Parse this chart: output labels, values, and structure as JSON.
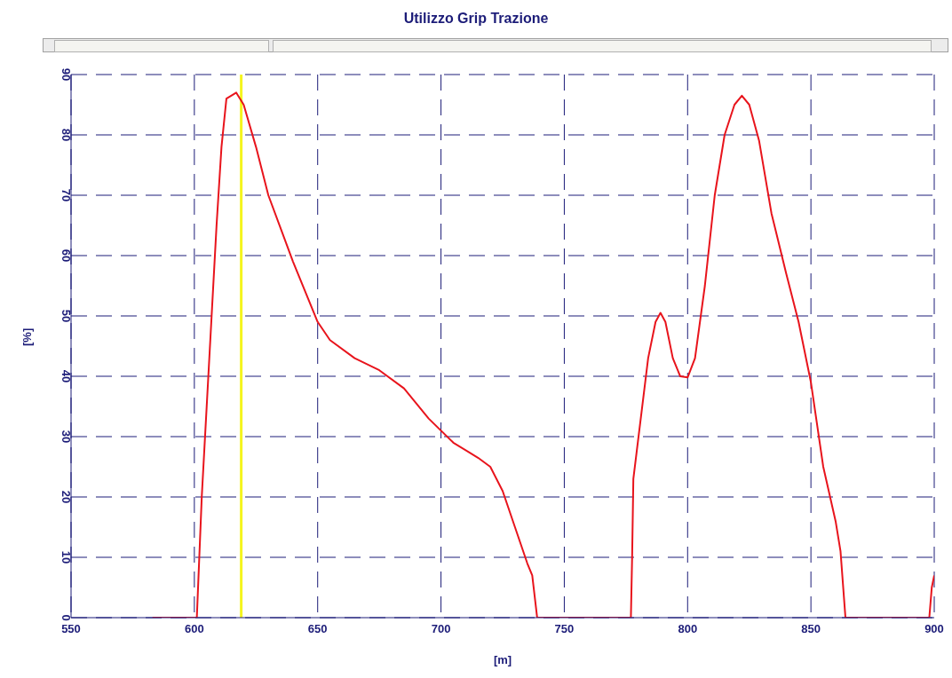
{
  "chart_data": {
    "type": "line",
    "title": "Utilizzo Grip Trazione",
    "xlabel": "[m]",
    "ylabel": "[%]",
    "x": [
      583,
      601,
      602,
      603,
      605,
      607,
      609,
      611,
      613,
      617,
      620,
      625,
      630,
      640,
      650,
      655,
      665,
      675,
      685,
      695,
      705,
      715,
      720,
      725,
      730,
      735,
      737,
      739,
      741,
      777,
      777.5,
      778,
      781,
      784,
      787,
      789,
      791,
      794,
      797,
      800,
      803,
      807,
      811,
      815,
      819,
      822,
      825,
      829,
      834,
      840,
      845,
      850,
      855,
      860,
      862,
      864,
      866,
      898,
      899,
      900
    ],
    "series": [
      {
        "color": "#e8141c",
        "values": [
          0,
          0,
          10,
          20,
          35,
          50,
          65,
          78,
          86,
          87,
          85,
          78,
          70,
          59,
          49,
          46,
          43,
          41,
          38,
          33,
          29,
          26.5,
          25,
          21,
          15,
          9,
          7,
          0,
          0,
          0,
          10,
          23,
          33,
          43,
          49,
          50.5,
          49,
          43,
          40,
          39.8,
          43,
          55,
          70,
          80,
          85,
          86.5,
          85,
          79,
          67,
          57,
          49,
          39,
          25,
          16,
          11,
          0,
          0,
          0,
          5,
          7
        ]
      }
    ],
    "xlim": [
      550,
      900
    ],
    "xticks": [
      550,
      600,
      650,
      700,
      750,
      800,
      850,
      900
    ],
    "ylim": [
      0,
      90
    ],
    "yticks": [
      0,
      10,
      20,
      30,
      40,
      50,
      60,
      70,
      80,
      90
    ],
    "grid": true,
    "line_style": "solid",
    "marker": "none",
    "ref_lines": [
      {
        "axis": "x",
        "value": 619,
        "color": "#f5f51e"
      }
    ]
  }
}
